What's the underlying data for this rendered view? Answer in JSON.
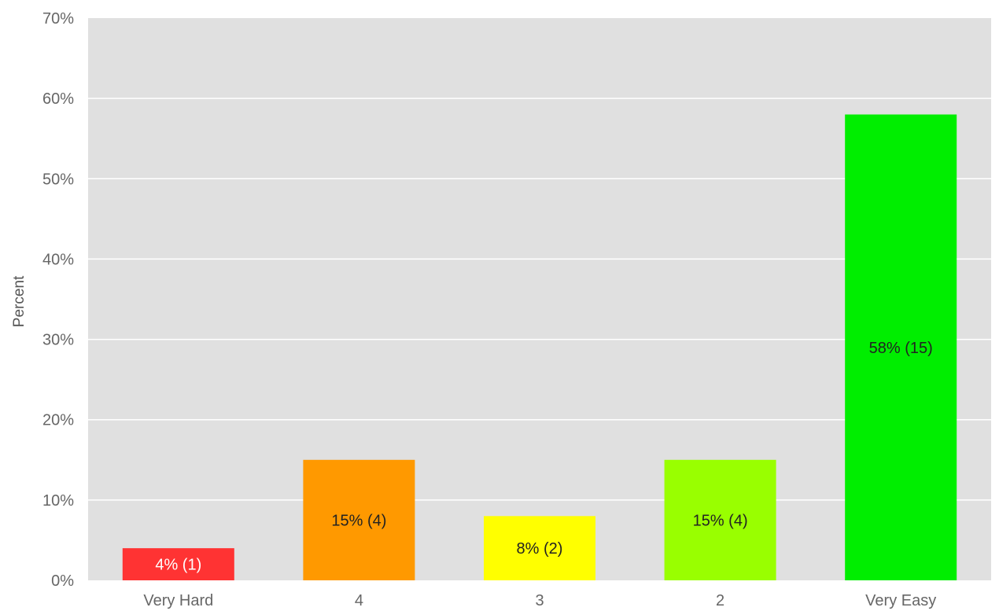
{
  "chart_data": {
    "type": "bar",
    "title": "",
    "xlabel": "",
    "ylabel": "Percent",
    "ylim": [
      0,
      70
    ],
    "y_ticks": [
      0,
      10,
      20,
      30,
      40,
      50,
      60,
      70
    ],
    "y_tick_labels": [
      "0%",
      "10%",
      "20%",
      "30%",
      "40%",
      "50%",
      "60%",
      "70%"
    ],
    "grid": true,
    "legend": "none",
    "categories": [
      "Very Hard",
      "4",
      "3",
      "2",
      "Very Easy"
    ],
    "values": [
      4,
      15,
      8,
      15,
      58
    ],
    "counts": [
      1,
      4,
      2,
      4,
      15
    ],
    "data_labels": [
      "4% (1)",
      "15% (4)",
      "8% (2)",
      "15% (4)",
      "58% (15)"
    ],
    "bar_colors": [
      "#ff3333",
      "#ff9900",
      "#ffff00",
      "#99ff00",
      "#00ee00"
    ],
    "label_colors": [
      "#ffffff",
      "#222222",
      "#222222",
      "#222222",
      "#222222"
    ],
    "plot_background": "#e0e0e0",
    "gridline_color": "#ffffff"
  }
}
